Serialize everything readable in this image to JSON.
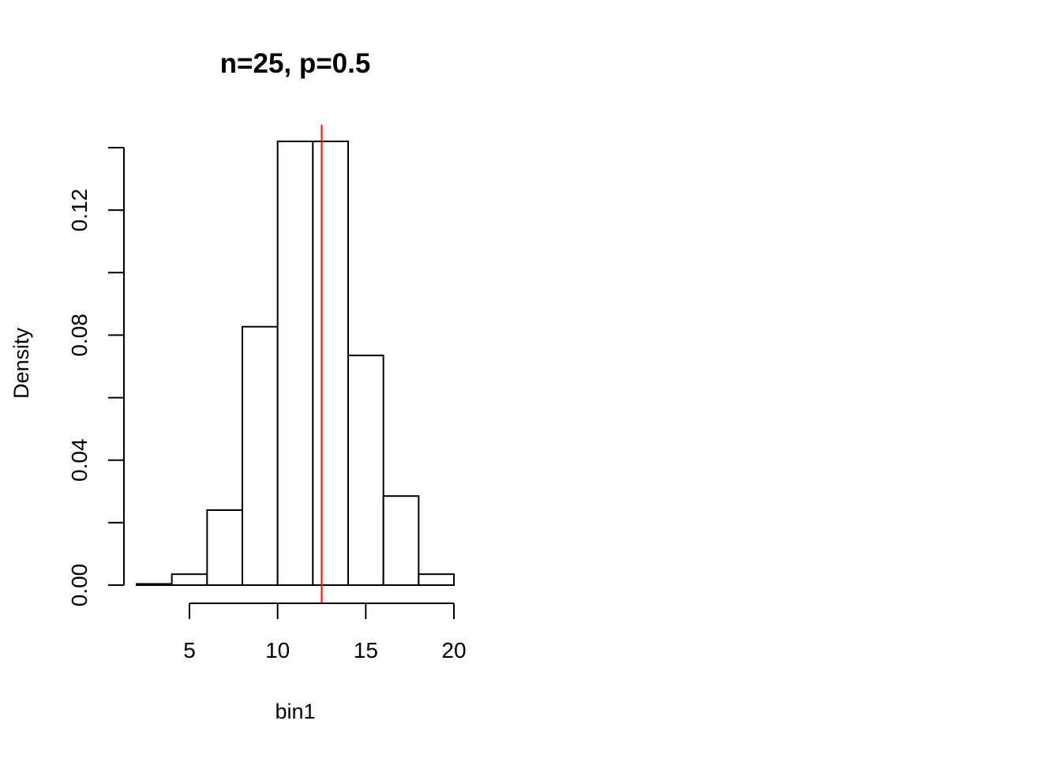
{
  "chart_data": {
    "type": "histogram",
    "title": "n=25, p=0.5",
    "xlabel": "bin1",
    "ylabel": "Density",
    "bins": [
      {
        "start": 2,
        "end": 4,
        "density": 0.0004
      },
      {
        "start": 4,
        "end": 6,
        "density": 0.0035
      },
      {
        "start": 6,
        "end": 8,
        "density": 0.024
      },
      {
        "start": 8,
        "end": 10,
        "density": 0.0827
      },
      {
        "start": 10,
        "end": 12,
        "density": 0.142
      },
      {
        "start": 12,
        "end": 14,
        "density": 0.142
      },
      {
        "start": 14,
        "end": 16,
        "density": 0.0735
      },
      {
        "start": 16,
        "end": 18,
        "density": 0.0285
      },
      {
        "start": 18,
        "end": 20,
        "density": 0.0035
      }
    ],
    "xlim": [
      2,
      20
    ],
    "ylim": [
      0,
      0.14
    ],
    "x_ticks": [
      5,
      10,
      15,
      20
    ],
    "x_tick_labels": [
      "5",
      "10",
      "15",
      "20"
    ],
    "y_ticks": [
      0,
      0.02,
      0.04,
      0.06,
      0.08,
      0.1,
      0.12,
      0.14
    ],
    "y_tick_labels": [
      "0.00",
      "",
      "0.04",
      "",
      "0.08",
      "",
      "0.12",
      ""
    ],
    "vline": {
      "x": 12.5,
      "color": "#ff0000"
    },
    "bar_fill": "#ffffff",
    "bar_stroke": "#000000",
    "grid": false
  }
}
